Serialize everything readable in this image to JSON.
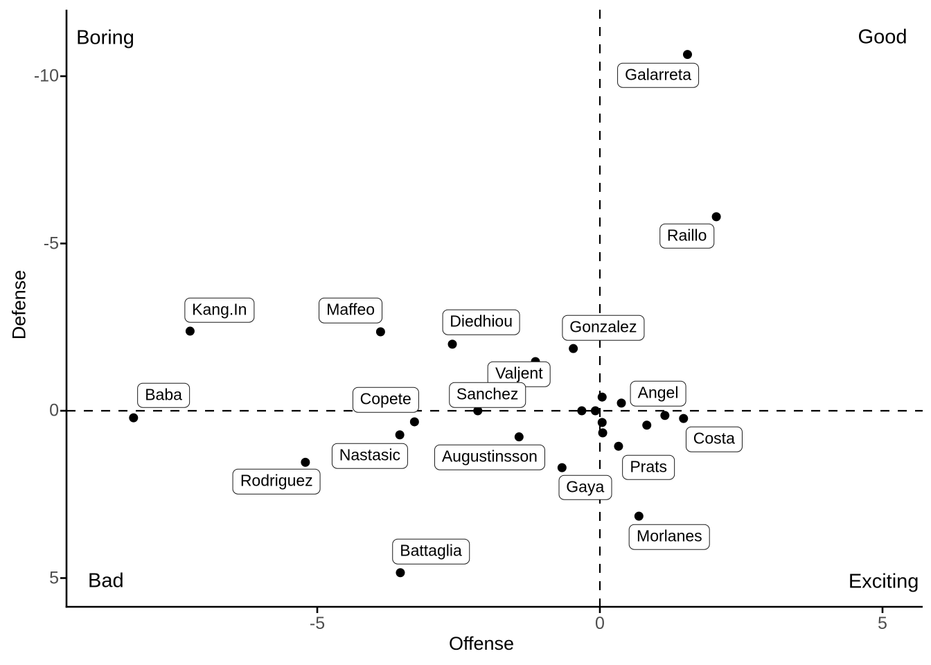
{
  "chart_data": {
    "type": "scatter",
    "title": "",
    "xlabel": "Offense",
    "ylabel": "Defense",
    "x_ticks": [
      -5,
      0,
      5
    ],
    "y_ticks": [
      -10,
      -5,
      0,
      5
    ],
    "xlim": [
      -9.44,
      5.71
    ],
    "ylim_top_to_bottom": [
      -11.99,
      5.86
    ],
    "y_axis_reversed": true,
    "grid": false,
    "legend": "none",
    "reference_lines": [
      {
        "axis": "x",
        "value": 0,
        "style": "dashed"
      },
      {
        "axis": "y",
        "value": 0,
        "style": "dashed"
      }
    ],
    "quadrant_labels": [
      {
        "text": "Boring",
        "x": -8.75,
        "y": -11.13
      },
      {
        "text": "Good",
        "x": 5.0,
        "y": -11.15
      },
      {
        "text": "Bad",
        "x": -8.74,
        "y": 5.09
      },
      {
        "text": "Exciting",
        "x": 5.02,
        "y": 5.11
      }
    ],
    "points": [
      {
        "label": "Galarreta",
        "x": 1.55,
        "y": -10.65,
        "label_x": 1.03,
        "label_y": -10.03
      },
      {
        "label": "Raillo",
        "x": 2.06,
        "y": -5.8,
        "label_x": 1.54,
        "label_y": -5.22
      },
      {
        "label": "Kang.In",
        "x": -7.25,
        "y": -2.38,
        "label_x": -6.73,
        "label_y": -3.01
      },
      {
        "label": "Maffeo",
        "x": -3.88,
        "y": -2.36,
        "label_x": -4.41,
        "label_y": -3.0
      },
      {
        "label": "Diedhiou",
        "x": -2.61,
        "y": -1.99,
        "label_x": -2.1,
        "label_y": -2.64
      },
      {
        "label": "Gonzalez",
        "x": -0.47,
        "y": -1.86,
        "label_x": 0.06,
        "label_y": -2.48
      },
      {
        "label": "Valjent",
        "x": -1.14,
        "y": -1.47,
        "label_x": -1.43,
        "label_y": -1.09
      },
      {
        "label": "Sanchez",
        "x": -2.16,
        "y": 0.0,
        "label_x": -1.99,
        "label_y": -0.47
      },
      {
        "label": "Baba",
        "x": -8.25,
        "y": 0.21,
        "label_x": -7.72,
        "label_y": -0.46
      },
      {
        "label": "Copete",
        "x": -3.28,
        "y": 0.33,
        "label_x": -3.79,
        "label_y": -0.33
      },
      {
        "label": "Nastasic",
        "x": -3.54,
        "y": 0.72,
        "label_x": -4.07,
        "label_y": 1.35
      },
      {
        "label": "Augustinsson",
        "x": -1.43,
        "y": 0.78,
        "label_x": -1.95,
        "label_y": 1.39
      },
      {
        "label": "Angel",
        "x": 0.38,
        "y": -0.23,
        "label_x": 1.03,
        "label_y": -0.51
      },
      {
        "label": "Costa",
        "x": 1.48,
        "y": 0.23,
        "label_x": 2.02,
        "label_y": 0.85
      },
      {
        "label": "Prats",
        "x": 0.83,
        "y": 0.43,
        "label_x": 0.86,
        "label_y": 1.69
      },
      {
        "label": "Rodriguez",
        "x": -5.21,
        "y": 1.54,
        "label_x": -5.72,
        "label_y": 2.11
      },
      {
        "label": "Gaya",
        "x": -0.67,
        "y": 1.7,
        "label_x": -0.26,
        "label_y": 2.29
      },
      {
        "label": "Morlanes",
        "x": 0.69,
        "y": 3.15,
        "label_x": 1.23,
        "label_y": 3.77
      },
      {
        "label": "Battaglia",
        "x": -3.53,
        "y": 4.84,
        "label_x": -2.99,
        "label_y": 4.21
      },
      {
        "label": null,
        "x": 0.04,
        "y": -0.41
      },
      {
        "label": null,
        "x": -0.32,
        "y": 0.0
      },
      {
        "label": null,
        "x": -0.08,
        "y": 0.0
      },
      {
        "label": null,
        "x": 0.04,
        "y": 0.35
      },
      {
        "label": null,
        "x": 0.05,
        "y": 0.66
      },
      {
        "label": null,
        "x": 0.33,
        "y": 1.06
      },
      {
        "label": null,
        "x": 1.15,
        "y": 0.14
      }
    ]
  },
  "colors": {
    "background": "#ffffff",
    "point": "#000000",
    "axis": "#000000",
    "reference_line": "#000000",
    "tick_text": "#4d4d4d",
    "title_text": "#000000",
    "label_border": "#1a1a1a",
    "label_fill": "#ffffff"
  }
}
